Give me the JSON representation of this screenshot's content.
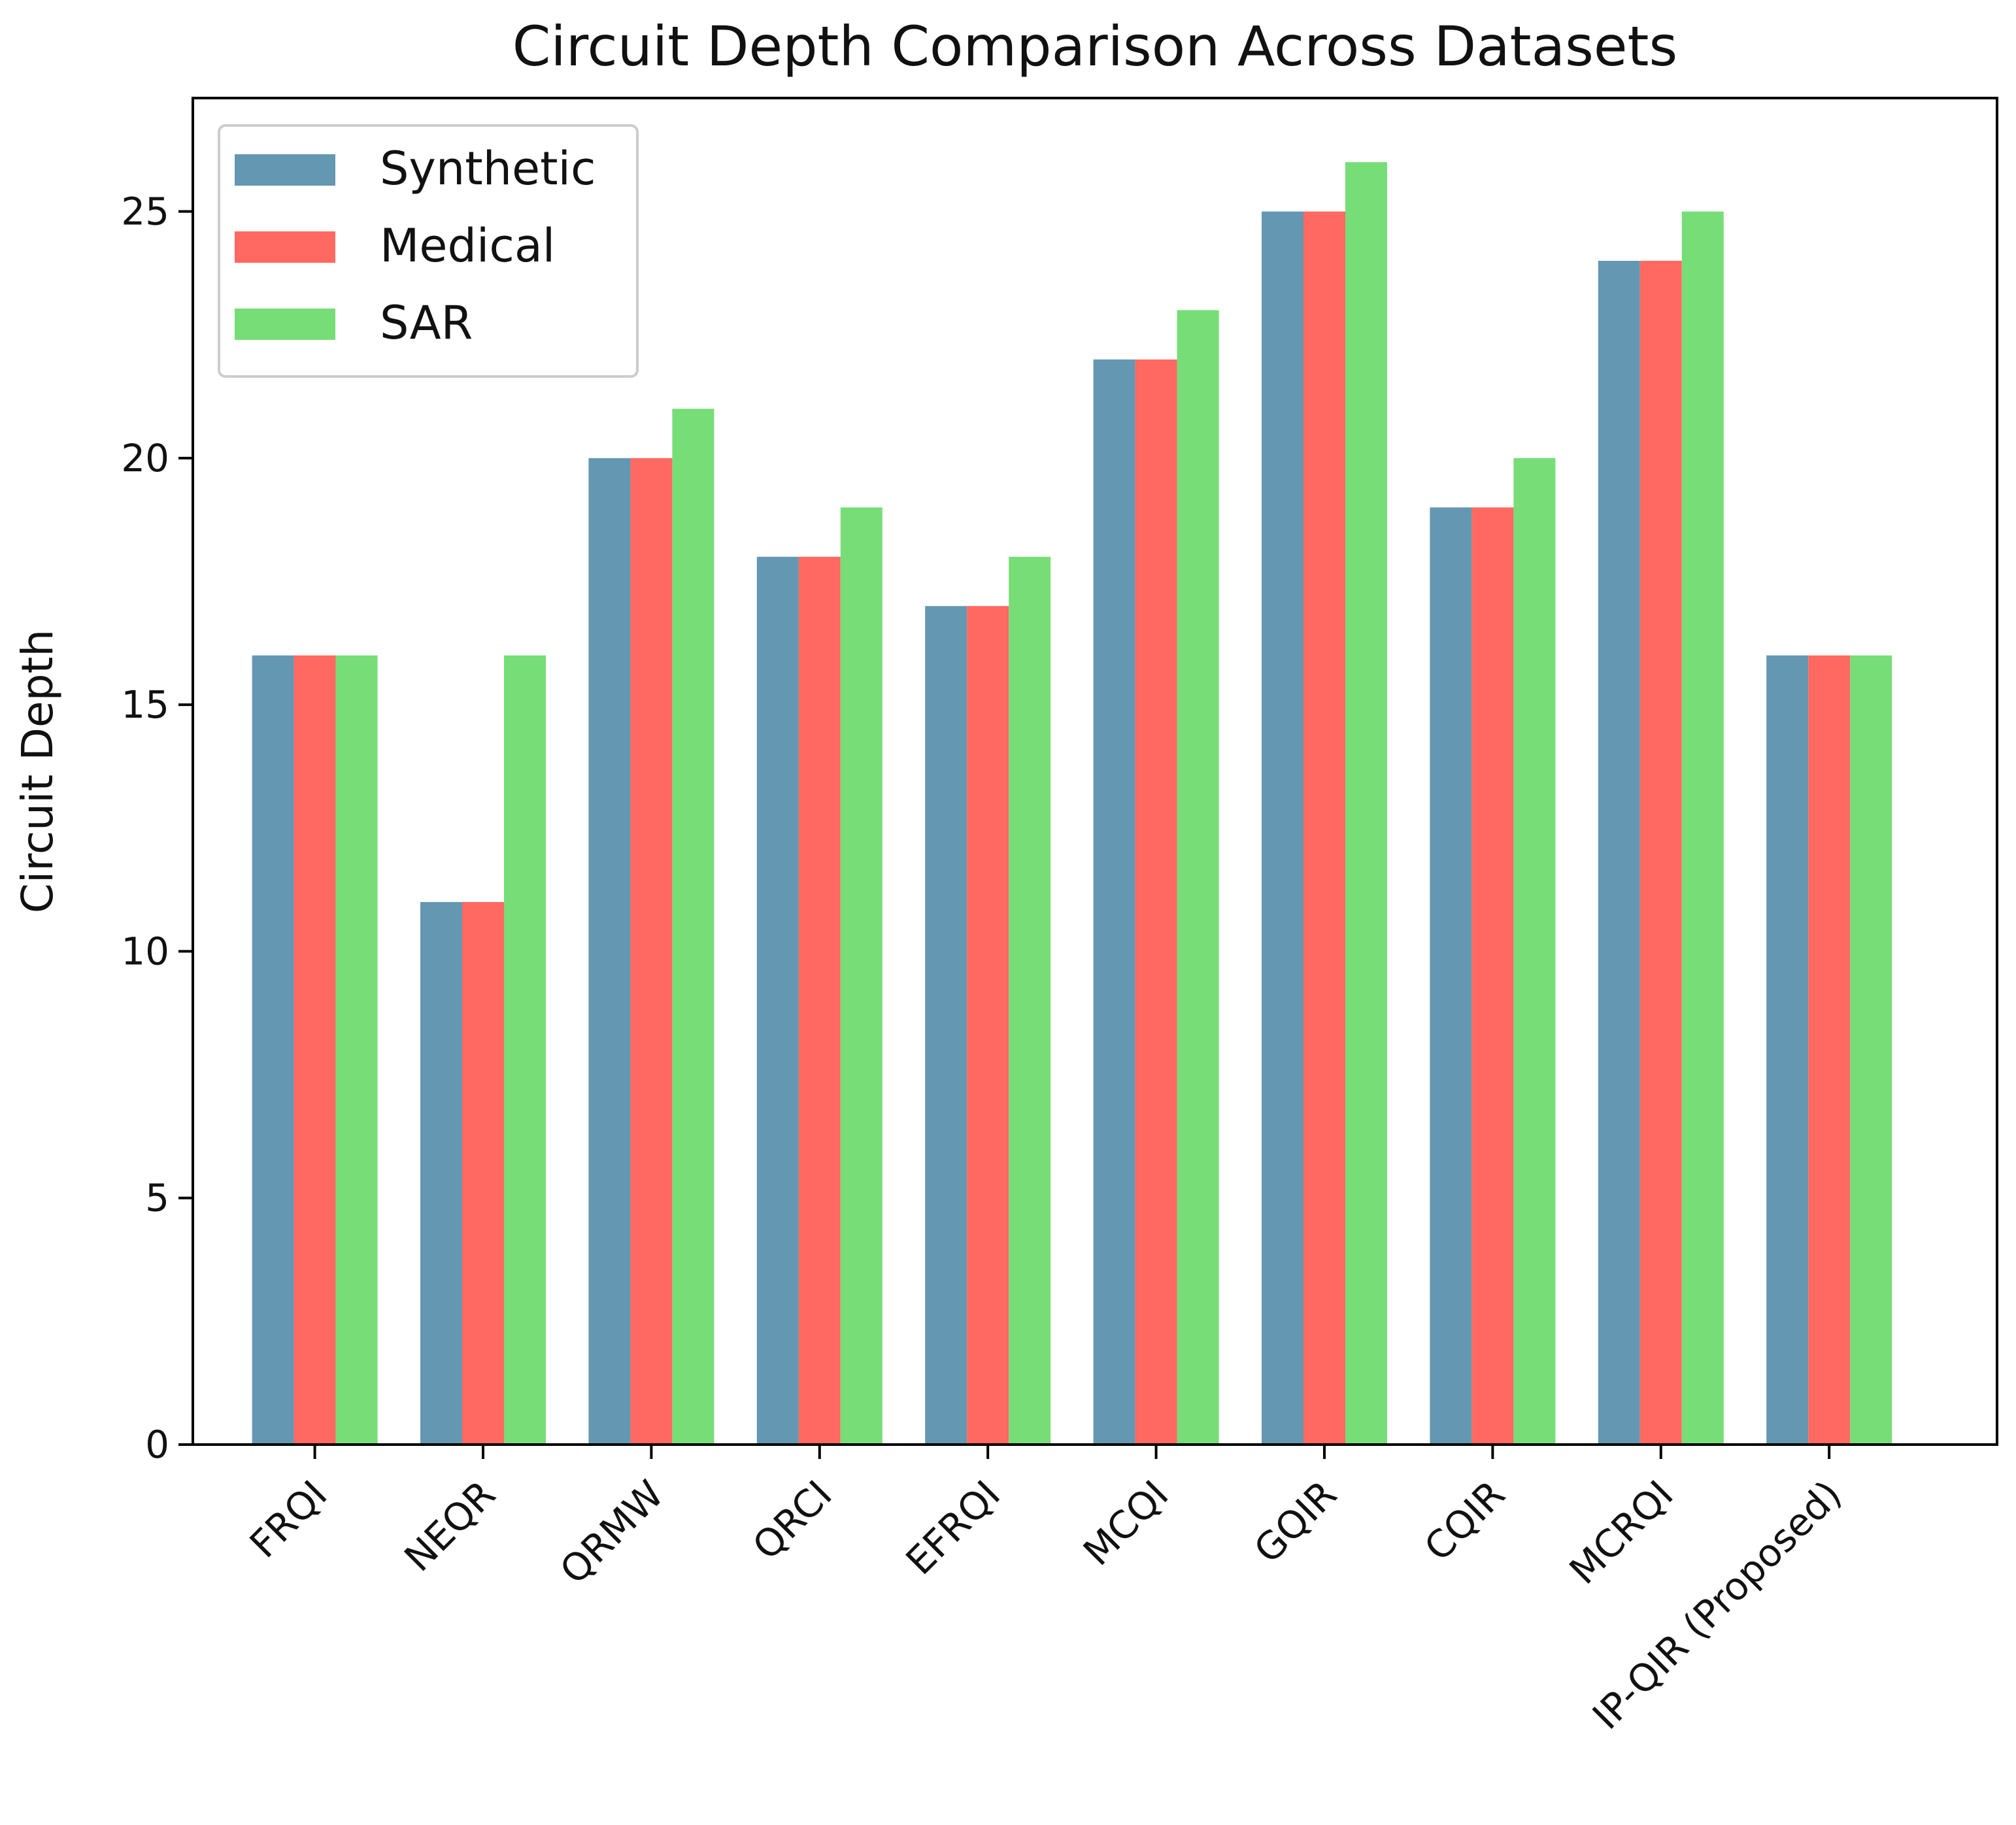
{
  "chart_data": {
    "type": "bar",
    "title": "Circuit Depth Comparison Across Datasets",
    "xlabel": "",
    "ylabel": "Circuit Depth",
    "categories": [
      "FRQI",
      "NEQR",
      "QRMW",
      "QRCI",
      "EFRQI",
      "MCQI",
      "GQIR",
      "CQIR",
      "MCRQI",
      "IP-QIR (Proposed)"
    ],
    "series": [
      {
        "name": "Synthetic",
        "color": "#6497b1",
        "values": [
          16,
          11,
          20,
          18,
          17,
          22,
          25,
          19,
          24,
          16
        ]
      },
      {
        "name": "Medical",
        "color": "#ff6961",
        "values": [
          16,
          11,
          20,
          18,
          17,
          22,
          25,
          19,
          24,
          16
        ]
      },
      {
        "name": "SAR",
        "color": "#77dd77",
        "values": [
          16,
          16,
          21,
          19,
          18,
          23,
          26,
          20,
          25,
          16
        ]
      }
    ],
    "ylim": [
      0,
      27.3
    ],
    "yticks": [
      0,
      5,
      10,
      15,
      20,
      25
    ],
    "grid": false,
    "legend_position": "top-left"
  }
}
